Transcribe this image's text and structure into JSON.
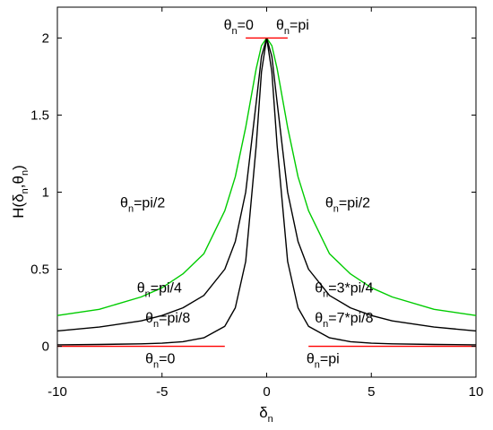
{
  "chart_data": {
    "type": "line",
    "xlabel": "δ",
    "xlabel_sub": "n",
    "ylabel": "H(δ",
    "ylabel_mid": ",θ",
    "ylabel_sub": "n",
    "ylabel_end": ")",
    "xlim": [
      -10,
      10
    ],
    "ylim": [
      -0.2,
      2.2
    ],
    "xticks": [
      -10,
      -5,
      0,
      5,
      10
    ],
    "xtick_labels": [
      "-10",
      "-5",
      "0",
      "5",
      "10"
    ],
    "yticks": [
      0,
      0.5,
      1,
      1.5,
      2
    ],
    "ytick_labels": [
      "0",
      "0.5",
      "1",
      "1.5",
      "2"
    ],
    "grid": false,
    "series": [
      {
        "id": "pi2",
        "color": "#00cc00",
        "kind": "left-right",
        "left": {
          "x": [
            -10,
            -8,
            -6,
            -5,
            -4,
            -3,
            -2,
            -1.5,
            -1,
            -0.5,
            -0.25,
            0
          ],
          "y": [
            0.2,
            0.24,
            0.32,
            0.38,
            0.47,
            0.6,
            0.88,
            1.1,
            1.42,
            1.8,
            1.95,
            2.0
          ]
        },
        "right": {
          "x": [
            0,
            0.25,
            0.5,
            1,
            1.5,
            2,
            3,
            4,
            5,
            6,
            8,
            10
          ],
          "y": [
            2.0,
            1.95,
            1.8,
            1.42,
            1.1,
            0.88,
            0.6,
            0.47,
            0.38,
            0.32,
            0.24,
            0.2
          ]
        }
      },
      {
        "id": "pi4",
        "color": "#000000",
        "kind": "left-right",
        "left": {
          "x": [
            -10,
            -8,
            -6,
            -5,
            -4,
            -3,
            -2,
            -1.5,
            -1,
            -0.5,
            -0.25,
            0
          ],
          "y": [
            0.1,
            0.125,
            0.165,
            0.2,
            0.25,
            0.33,
            0.5,
            0.68,
            1.0,
            1.58,
            1.88,
            2.0
          ]
        },
        "right": {
          "x": [
            0,
            0.25,
            0.5,
            1,
            1.5,
            2,
            3,
            4,
            5,
            6,
            8,
            10
          ],
          "y": [
            2.0,
            1.88,
            1.58,
            1.0,
            0.68,
            0.5,
            0.33,
            0.25,
            0.2,
            0.165,
            0.125,
            0.1
          ]
        }
      },
      {
        "id": "pi8",
        "color": "#000000",
        "kind": "left-right",
        "left": {
          "x": [
            -10,
            -8,
            -6,
            -5,
            -4,
            -3,
            -2,
            -1.5,
            -1,
            -0.5,
            -0.25,
            0
          ],
          "y": [
            0.01,
            0.012,
            0.016,
            0.02,
            0.03,
            0.055,
            0.13,
            0.25,
            0.55,
            1.3,
            1.78,
            2.0
          ]
        },
        "right": {
          "x": [
            0,
            0.25,
            0.5,
            1,
            1.5,
            2,
            3,
            4,
            5,
            6,
            8,
            10
          ],
          "y": [
            2.0,
            1.78,
            1.3,
            0.55,
            0.25,
            0.13,
            0.055,
            0.03,
            0.02,
            0.016,
            0.012,
            0.01
          ]
        }
      },
      {
        "id": "zero_pi_base",
        "color": "#ff0000",
        "kind": "segments",
        "segments": [
          {
            "x": [
              -10,
              -2
            ],
            "y": [
              0,
              0
            ]
          },
          {
            "x": [
              2,
              10
            ],
            "y": [
              0,
              0
            ]
          }
        ]
      },
      {
        "id": "zero_pi_top",
        "color": "#ff0000",
        "kind": "segments",
        "segments": [
          {
            "x": [
              -1,
              1
            ],
            "y": [
              2,
              2
            ]
          }
        ]
      }
    ],
    "annotations": [
      {
        "base": "θ",
        "sub": "n",
        "rest": "=0",
        "x": -2.05,
        "y": 2.055
      },
      {
        "base": "θ",
        "sub": "n",
        "rest": "=pi",
        "x": 0.45,
        "y": 2.055
      },
      {
        "base": "θ",
        "sub": "n",
        "rest": "=pi/2",
        "x": -7.0,
        "y": 0.9
      },
      {
        "base": "θ",
        "sub": "n",
        "rest": "=pi/2",
        "x": 2.8,
        "y": 0.9
      },
      {
        "base": "θ",
        "sub": "n",
        "rest": "=pi/4",
        "x": -6.2,
        "y": 0.35
      },
      {
        "base": "θ",
        "sub": "n",
        "rest": "=3*pi/4",
        "x": 2.3,
        "y": 0.35
      },
      {
        "base": "θ",
        "sub": "n",
        "rest": "=pi/8",
        "x": -5.8,
        "y": 0.155
      },
      {
        "base": "θ",
        "sub": "n",
        "rest": "=7*pi/8",
        "x": 2.3,
        "y": 0.155
      },
      {
        "base": "θ",
        "sub": "n",
        "rest": "=0",
        "x": -5.8,
        "y": -0.11
      },
      {
        "base": "θ",
        "sub": "n",
        "rest": "=pi",
        "x": 1.9,
        "y": -0.11
      }
    ]
  }
}
